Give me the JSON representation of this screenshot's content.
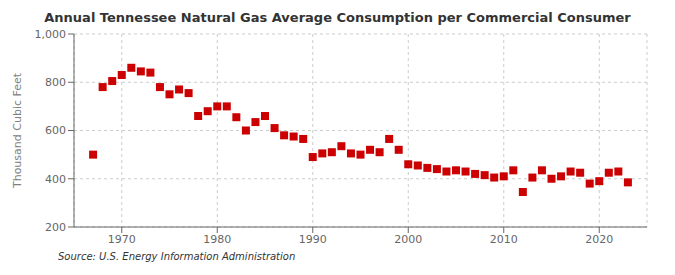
{
  "chart_data": {
    "type": "scatter",
    "title": "Annual Tennessee Natural Gas Average Consumption per Commercial Consumer",
    "y_label": "Thousand Cubic Feet",
    "annotations": [
      "Source: U.S. Energy Information Administration"
    ],
    "color": "#cc0000",
    "marker": "square",
    "grid": true,
    "xlim": [
      1965,
      2025
    ],
    "xticks": [
      1970,
      1980,
      1990,
      2000,
      2010,
      2020
    ],
    "ylim": [
      200,
      1000
    ],
    "yticks": [
      200,
      400,
      600,
      800,
      {
        "value": 1000,
        "label": "1,000"
      }
    ],
    "x": [
      1967,
      1968,
      1969,
      1970,
      1971,
      1972,
      1973,
      1974,
      1975,
      1976,
      1977,
      1978,
      1979,
      1980,
      1981,
      1982,
      1983,
      1984,
      1985,
      1986,
      1987,
      1988,
      1989,
      1990,
      1991,
      1992,
      1993,
      1994,
      1995,
      1996,
      1997,
      1998,
      1999,
      2000,
      2001,
      2002,
      2003,
      2004,
      2005,
      2006,
      2007,
      2008,
      2009,
      2010,
      2011,
      2012,
      2013,
      2014,
      2015,
      2016,
      2017,
      2018,
      2019,
      2020,
      2021,
      2022,
      2023
    ],
    "values": [
      500,
      780,
      805,
      830,
      860,
      845,
      840,
      780,
      750,
      770,
      755,
      660,
      680,
      700,
      700,
      655,
      600,
      635,
      660,
      610,
      580,
      575,
      565,
      490,
      505,
      510,
      535,
      505,
      500,
      520,
      510,
      565,
      520,
      460,
      455,
      445,
      440,
      430,
      435,
      430,
      420,
      415,
      405,
      410,
      435,
      345,
      405,
      435,
      400,
      410,
      430,
      425,
      380,
      390,
      425,
      430,
      385
    ]
  }
}
